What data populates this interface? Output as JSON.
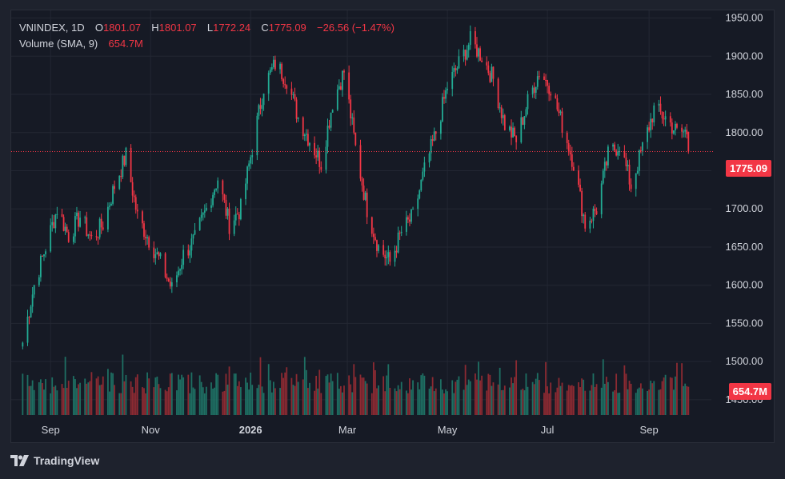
{
  "header": {
    "symbol": "VNINDEX",
    "interval": "1D",
    "open_label": "O",
    "open": "1801.07",
    "high_label": "H",
    "high": "1801.07",
    "low_label": "L",
    "low": "1772.24",
    "close_label": "C",
    "close": "1775.09",
    "change": "−26.56 (−1.47%)",
    "volume_label": "Volume (SMA, 9)",
    "volume_value": "654.7M"
  },
  "brand": {
    "name": "TradingView",
    "icon": "tradingview-logo"
  },
  "colors": {
    "up": "#22ab94",
    "down": "#f23645",
    "up_volume": "#1e6f63",
    "down_volume": "#8c2a32",
    "grid": "#232733",
    "axis_text": "#d1d4dc",
    "background": "#161a25"
  },
  "chart_data": {
    "type": "candlestick",
    "title": "VNINDEX",
    "interval": "1D",
    "ylim": [
      1430,
      1960
    ],
    "y_ticks": [
      "1950.00",
      "1900.00",
      "1850.00",
      "1800.00",
      "1750.00",
      "1700.00",
      "1650.00",
      "1600.00",
      "1550.00",
      "1500.00",
      "1450.00"
    ],
    "x_ticks": [
      "Sep",
      "Nov",
      "2026",
      "Mar",
      "May",
      "Jul",
      "Sep"
    ],
    "last_price_label": "1775.09",
    "last_volume_label": "654.7M",
    "grid": true,
    "price_anchors": [
      [
        "2025-08-15",
        1525
      ],
      [
        "2025-08-22",
        1600
      ],
      [
        "2025-08-29",
        1650
      ],
      [
        "2025-09-05",
        1700
      ],
      [
        "2025-09-12",
        1665
      ],
      [
        "2025-09-19",
        1690
      ],
      [
        "2025-09-26",
        1660
      ],
      [
        "2025-10-03",
        1680
      ],
      [
        "2025-10-10",
        1730
      ],
      [
        "2025-10-17",
        1770
      ],
      [
        "2025-10-24",
        1690
      ],
      [
        "2025-10-31",
        1660
      ],
      [
        "2025-11-07",
        1630
      ],
      [
        "2025-11-14",
        1595
      ],
      [
        "2025-11-21",
        1640
      ],
      [
        "2025-11-28",
        1660
      ],
      [
        "2025-12-05",
        1700
      ],
      [
        "2025-12-12",
        1740
      ],
      [
        "2025-12-19",
        1680
      ],
      [
        "2025-12-26",
        1700
      ],
      [
        "2026-01-02",
        1780
      ],
      [
        "2026-01-09",
        1860
      ],
      [
        "2026-01-16",
        1890
      ],
      [
        "2026-01-23",
        1870
      ],
      [
        "2026-01-30",
        1820
      ],
      [
        "2026-02-06",
        1790
      ],
      [
        "2026-02-13",
        1760
      ],
      [
        "2026-02-20",
        1840
      ],
      [
        "2026-02-27",
        1880
      ],
      [
        "2026-03-06",
        1780
      ],
      [
        "2026-03-13",
        1700
      ],
      [
        "2026-03-20",
        1650
      ],
      [
        "2026-03-27",
        1630
      ],
      [
        "2026-04-03",
        1670
      ],
      [
        "2026-04-10",
        1690
      ],
      [
        "2026-04-17",
        1750
      ],
      [
        "2026-04-24",
        1800
      ],
      [
        "2026-05-01",
        1860
      ],
      [
        "2026-05-08",
        1890
      ],
      [
        "2026-05-15",
        1920
      ],
      [
        "2026-05-22",
        1900
      ],
      [
        "2026-05-29",
        1870
      ],
      [
        "2026-06-05",
        1810
      ],
      [
        "2026-06-12",
        1790
      ],
      [
        "2026-06-19",
        1840
      ],
      [
        "2026-06-26",
        1880
      ],
      [
        "2026-07-03",
        1860
      ],
      [
        "2026-07-10",
        1810
      ],
      [
        "2026-07-17",
        1760
      ],
      [
        "2026-07-24",
        1680
      ],
      [
        "2026-07-31",
        1700
      ],
      [
        "2026-08-07",
        1770
      ],
      [
        "2026-08-14",
        1785
      ],
      [
        "2026-08-21",
        1730
      ],
      [
        "2026-08-28",
        1780
      ],
      [
        "2026-09-04",
        1830
      ],
      [
        "2026-09-11",
        1820
      ],
      [
        "2026-09-18",
        1800
      ],
      [
        "2026-09-25",
        1801
      ]
    ],
    "last_candle": {
      "open": 1801.07,
      "high": 1801.07,
      "low": 1772.24,
      "close": 1775.09
    },
    "volume": {
      "sma_period": 9,
      "last": 654.7,
      "unit": "M",
      "typical_range_m": [
        500,
        1400
      ]
    }
  }
}
